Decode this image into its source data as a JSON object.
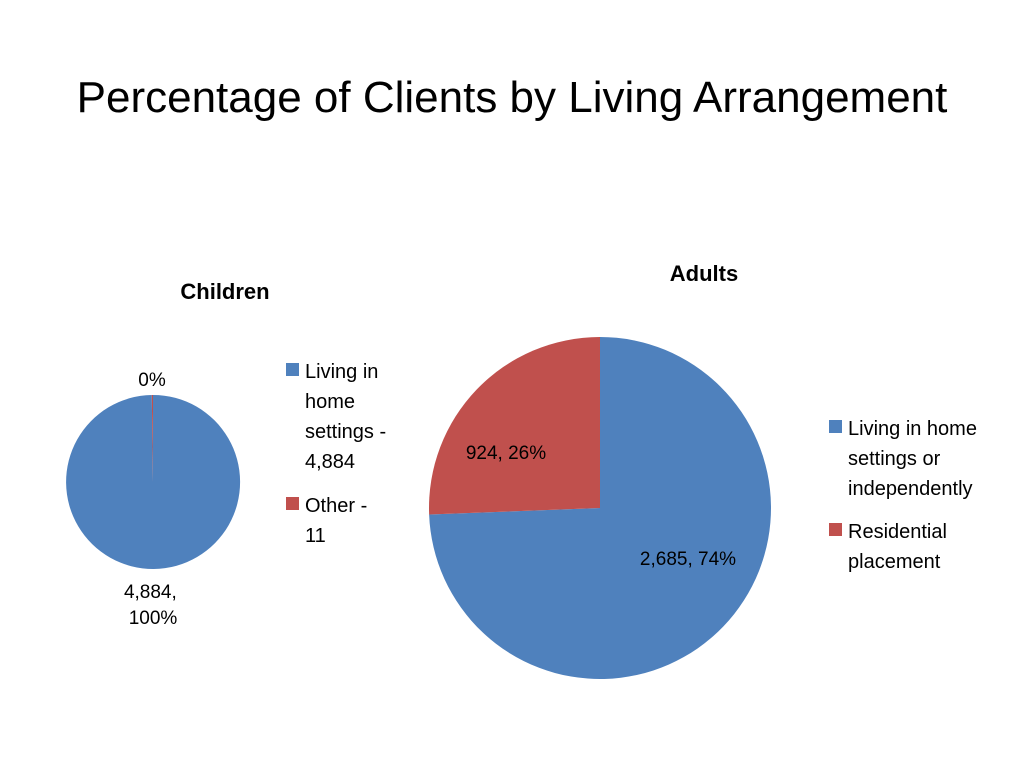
{
  "slide": {
    "title": "Percentage of Clients by Living Arrangement"
  },
  "chart_data": [
    {
      "type": "pie",
      "title": "Children",
      "slices": [
        {
          "label": "Living in home settings - 4,884",
          "value": 4884,
          "color": "#4f81bd",
          "data_label": [
            "4,884,",
            "100%"
          ]
        },
        {
          "label": "Other - 11",
          "value": 11,
          "color": "#c0504d",
          "data_label": [
            "0%"
          ]
        }
      ],
      "legend": {
        "position": "right",
        "items": [
          {
            "lines": [
              "Living in",
              "home",
              "settings -",
              "4,884"
            ],
            "color": "#4f81bd"
          },
          {
            "lines": [
              "Other -",
              "11"
            ],
            "color": "#c0504d"
          }
        ]
      }
    },
    {
      "type": "pie",
      "title": "Adults",
      "slices": [
        {
          "label": "Living in home settings or independently",
          "value": 2685,
          "color": "#4f81bd",
          "data_label": [
            "2,685, 74%"
          ]
        },
        {
          "label": "Residential placement",
          "value": 924,
          "color": "#c0504d",
          "data_label": [
            "924, 26%"
          ]
        }
      ],
      "legend": {
        "position": "right",
        "items": [
          {
            "lines": [
              "Living in home",
              "settings or",
              "independently"
            ],
            "color": "#4f81bd"
          },
          {
            "lines": [
              "Residential",
              "placement"
            ],
            "color": "#c0504d"
          }
        ]
      }
    }
  ]
}
